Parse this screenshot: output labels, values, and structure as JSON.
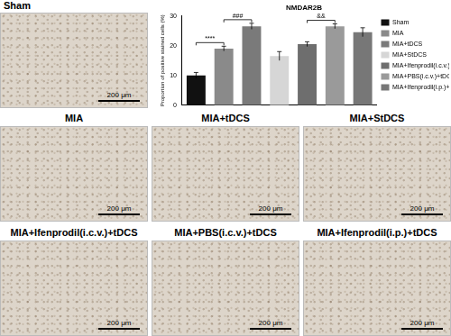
{
  "panels": [
    {
      "label": "Sham",
      "scale_bar": "200 μm"
    },
    {
      "label": "MIA",
      "scale_bar": "200 μm"
    },
    {
      "label": "MIA+tDCS",
      "scale_bar": "200 μm"
    },
    {
      "label": "MIA+StDCS",
      "scale_bar": "200 μm"
    },
    {
      "label": "MIA+Ifenprodil(i.c.v.)+tDCS",
      "scale_bar": "200 μm"
    },
    {
      "label": "MIA+PBS(i.c.v.)+tDCS",
      "scale_bar": "200 μm"
    },
    {
      "label": "MIA+Ifenprodil(i.p.)+tDCS",
      "scale_bar": "200 μm"
    }
  ],
  "chart_data": {
    "type": "bar",
    "title": "NMDAR2B",
    "y_label": "Proportion of positive stained cells (%)",
    "categories": [
      "Sham",
      "MIA",
      "MIA+tDCS",
      "MIA+StDCS",
      "MIA+Ifenprodil(i.c.v.)+tDCS",
      "MIA+PBS(i.c.v.)+tDCS",
      "MIA+Ifenprodil(i.p.)+tDCS"
    ],
    "values": [
      10,
      19,
      26.5,
      16.5,
      20.5,
      26.5,
      24.5
    ],
    "errors": [
      1,
      0.8,
      1,
      1.5,
      0.8,
      0.8,
      1.5
    ],
    "colors": [
      "#111111",
      "#8a8a8a",
      "#7a7a7a",
      "#d6d6d6",
      "#6e6e6e",
      "#9a9a9a",
      "#777777"
    ],
    "ylim": [
      0,
      30
    ],
    "yticks": [
      0,
      10,
      20,
      30
    ],
    "grid": false,
    "legend": "right",
    "tick_labels": "y",
    "annotations": [
      {
        "from": 0,
        "to": 1,
        "label": "****"
      },
      {
        "from": 1,
        "to": 2,
        "label": "###"
      },
      {
        "from": 4,
        "to": 5,
        "label": "&&"
      }
    ]
  }
}
